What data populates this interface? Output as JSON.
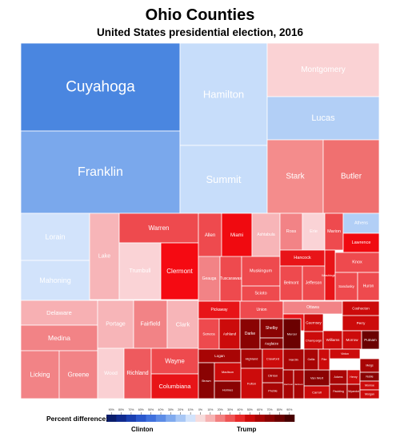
{
  "title": "Ohio Counties",
  "subtitle": "United States presidential election, 2016",
  "legend": {
    "label": "Percent difference:",
    "left_label": "Clinton",
    "right_label": "Trump",
    "ticks": [
      "90%",
      "80%",
      "70%",
      "60%",
      "50%",
      "40%",
      "30%",
      "20%",
      "10%",
      "0%",
      "10%",
      "20%",
      "30%",
      "40%",
      "50%",
      "60%",
      "70%",
      "80%",
      "90%"
    ],
    "colors": [
      "#0a1d6b",
      "#102a8e",
      "#1a3fb0",
      "#2a57cc",
      "#3f70dd",
      "#5c8ce6",
      "#80aaee",
      "#a8c7f5",
      "#d2e3fb",
      "#f7dcdc",
      "#f6b3b3",
      "#f28080",
      "#ee5555",
      "#e82a2a",
      "#cc0b0b",
      "#a80505",
      "#8a0303",
      "#6b0101",
      "#480000"
    ]
  },
  "chart_data": {
    "type": "treemap",
    "title": "Ohio Counties",
    "subtitle": "United States presidential election, 2016",
    "color_scale": "percent difference, Clinton (blue) to Trump (red)",
    "cells": [
      {
        "name": "Cuyahoga",
        "color": "#4a86e0"
      },
      {
        "name": "Franklin",
        "color": "#7aa8ec"
      },
      {
        "name": "Hamilton",
        "color": "#c7ddfa"
      },
      {
        "name": "Summit",
        "color": "#c7ddfa"
      },
      {
        "name": "Montgomery",
        "color": "#fad2d4"
      },
      {
        "name": "Lucas",
        "color": "#b2cff6"
      },
      {
        "name": "Stark",
        "color": "#f48c8c"
      },
      {
        "name": "Butler",
        "color": "#f07070"
      },
      {
        "name": "Lorain",
        "color": "#d2e3fb"
      },
      {
        "name": "Mahoning",
        "color": "#d2e3fb"
      },
      {
        "name": "Lake",
        "color": "#f7b5b8"
      },
      {
        "name": "Warren",
        "color": "#ee4a4e"
      },
      {
        "name": "Trumbull",
        "color": "#fad3d6"
      },
      {
        "name": "Clermont",
        "color": "#f50a12"
      },
      {
        "name": "Delaware",
        "color": "#f7b0b3"
      },
      {
        "name": "Medina",
        "color": "#f28386"
      },
      {
        "name": "Licking",
        "color": "#f28386"
      },
      {
        "name": "Greene",
        "color": "#f28386"
      },
      {
        "name": "Portage",
        "color": "#f7b5b8"
      },
      {
        "name": "Fairfield",
        "color": "#f28386"
      },
      {
        "name": "Clark",
        "color": "#f7b5b8"
      },
      {
        "name": "Wood",
        "color": "#fad0d3"
      },
      {
        "name": "Richland",
        "color": "#ee5a5e"
      },
      {
        "name": "Wayne",
        "color": "#ee4a4e"
      },
      {
        "name": "Columbiana",
        "color": "#e81418"
      },
      {
        "name": "Allen",
        "color": "#ee4a4e"
      },
      {
        "name": "Miami",
        "color": "#f00a10"
      },
      {
        "name": "Ashtabula",
        "color": "#f7b5b8"
      },
      {
        "name": "Ross",
        "color": "#f28386"
      },
      {
        "name": "Erie",
        "color": "#fad3d6"
      },
      {
        "name": "Marion",
        "color": "#ee4a4e"
      },
      {
        "name": "Athens",
        "color": "#b2cff6"
      },
      {
        "name": "Lawrence",
        "color": "#f00a10"
      },
      {
        "name": "Geauga",
        "color": "#f28386"
      },
      {
        "name": "Tuscarawas",
        "color": "#ee4a4e"
      },
      {
        "name": "Muskingum",
        "color": "#ee4a4e"
      },
      {
        "name": "Scioto",
        "color": "#ee4a4e"
      },
      {
        "name": "Hancock",
        "color": "#e81418"
      },
      {
        "name": "Knox",
        "color": "#ee4a4e"
      },
      {
        "name": "Belmont",
        "color": "#ee4a4e"
      },
      {
        "name": "Jefferson",
        "color": "#ee4a4e"
      },
      {
        "name": "Washington",
        "color": "#e81418"
      },
      {
        "name": "Sandusky",
        "color": "#ee4a4e"
      },
      {
        "name": "Huron",
        "color": "#ee4a4e"
      },
      {
        "name": "Pickaway",
        "color": "#e81418"
      },
      {
        "name": "Union",
        "color": "#ee4a4e"
      },
      {
        "name": "Ottawa",
        "color": "#f28386"
      },
      {
        "name": "Coshocton",
        "color": "#cc0b0b"
      },
      {
        "name": "Defiance",
        "color": "#e81418"
      },
      {
        "name": "Perry",
        "color": "#cc0b0b"
      },
      {
        "name": "Seneca",
        "color": "#ee4a4e"
      },
      {
        "name": "Ashland",
        "color": "#cc0b0b"
      },
      {
        "name": "Darke",
        "color": "#8a0303"
      },
      {
        "name": "Shelby",
        "color": "#8a0303"
      },
      {
        "name": "Auglaize",
        "color": "#8a0303"
      },
      {
        "name": "Mercer",
        "color": "#6b0101"
      },
      {
        "name": "Guernsey",
        "color": "#cc0b0b"
      },
      {
        "name": "Champaign",
        "color": "#cc0b0b"
      },
      {
        "name": "Williams",
        "color": "#cc0b0b"
      },
      {
        "name": "Morrow",
        "color": "#cc0b0b"
      },
      {
        "name": "Putnam",
        "color": "#6b0101"
      },
      {
        "name": "Logan",
        "color": "#a80505"
      },
      {
        "name": "Highland",
        "color": "#a80505"
      },
      {
        "name": "Crawford",
        "color": "#cc0b0b"
      },
      {
        "name": "Fulton",
        "color": "#cc0b0b"
      },
      {
        "name": "Hardin",
        "color": "#a80505"
      },
      {
        "name": "Gallia",
        "color": "#a80505"
      },
      {
        "name": "Preble",
        "color": "#a80505"
      },
      {
        "name": "Clinton",
        "color": "#a80505"
      },
      {
        "name": "Brown",
        "color": "#8a0303"
      },
      {
        "name": "Madison",
        "color": "#cc0b0b"
      },
      {
        "name": "Holmes",
        "color": "#8a0303"
      },
      {
        "name": "Van Wert",
        "color": "#8a0303"
      },
      {
        "name": "Carroll",
        "color": "#cc0b0b"
      },
      {
        "name": "Pike",
        "color": "#cc0b0b"
      },
      {
        "name": "Adams",
        "color": "#a80505"
      },
      {
        "name": "Meigs",
        "color": "#a80505"
      },
      {
        "name": "Henry",
        "color": "#cc0b0b"
      },
      {
        "name": "Paulding",
        "color": "#a80505"
      },
      {
        "name": "Wyandot",
        "color": "#a80505"
      },
      {
        "name": "Harrison",
        "color": "#a80505"
      },
      {
        "name": "Jackson",
        "color": "#a80505"
      },
      {
        "name": "Noble",
        "color": "#8a0303"
      },
      {
        "name": "Monroe",
        "color": "#cc0b0b"
      },
      {
        "name": "Morgan",
        "color": "#cc0b0b"
      },
      {
        "name": "Vinton",
        "color": "#cc0b0b"
      }
    ]
  }
}
